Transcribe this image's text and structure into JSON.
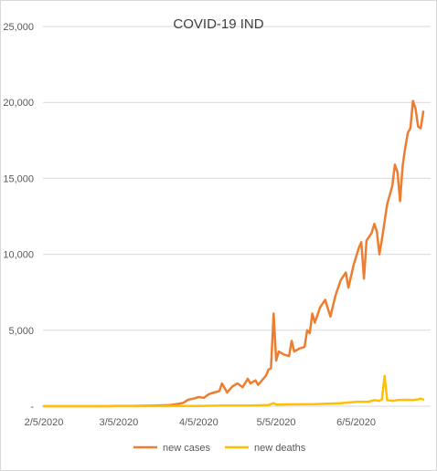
{
  "chart_data": {
    "type": "line",
    "title": "COVID-19 IND",
    "xlabel": "",
    "ylabel": "",
    "x_ticks": [
      "2/5/2020",
      "3/5/2020",
      "4/5/2020",
      "5/5/2020",
      "6/5/2020"
    ],
    "x_range": [
      "2020-02-05",
      "2020-07-01"
    ],
    "y_ticks": [
      "-",
      "5,000",
      "10,000",
      "15,000",
      "20,000",
      "25,000"
    ],
    "ylim": [
      0,
      25000
    ],
    "grid": "horizontal",
    "legend_position": "bottom",
    "series": [
      {
        "name": "new cases",
        "color": "#ED7D31",
        "points": [
          [
            "2020-02-05",
            0
          ],
          [
            "2020-03-01",
            0
          ],
          [
            "2020-03-05",
            20
          ],
          [
            "2020-03-10",
            10
          ],
          [
            "2020-03-15",
            30
          ],
          [
            "2020-03-20",
            50
          ],
          [
            "2020-03-25",
            80
          ],
          [
            "2020-03-28",
            150
          ],
          [
            "2020-03-30",
            220
          ],
          [
            "2020-04-01",
            430
          ],
          [
            "2020-04-03",
            500
          ],
          [
            "2020-04-05",
            600
          ],
          [
            "2020-04-07",
            550
          ],
          [
            "2020-04-09",
            800
          ],
          [
            "2020-04-11",
            900
          ],
          [
            "2020-04-13",
            1000
          ],
          [
            "2020-04-14",
            1500
          ],
          [
            "2020-04-16",
            900
          ],
          [
            "2020-04-18",
            1300
          ],
          [
            "2020-04-20",
            1500
          ],
          [
            "2020-04-22",
            1250
          ],
          [
            "2020-04-24",
            1800
          ],
          [
            "2020-04-25",
            1500
          ],
          [
            "2020-04-27",
            1700
          ],
          [
            "2020-04-28",
            1400
          ],
          [
            "2020-04-30",
            1800
          ],
          [
            "2020-05-01",
            2000
          ],
          [
            "2020-05-02",
            2400
          ],
          [
            "2020-05-03",
            2500
          ],
          [
            "2020-05-04",
            6100
          ],
          [
            "2020-05-05",
            3000
          ],
          [
            "2020-05-06",
            3600
          ],
          [
            "2020-05-08",
            3400
          ],
          [
            "2020-05-10",
            3300
          ],
          [
            "2020-05-11",
            4300
          ],
          [
            "2020-05-12",
            3600
          ],
          [
            "2020-05-14",
            3800
          ],
          [
            "2020-05-16",
            3900
          ],
          [
            "2020-05-17",
            5000
          ],
          [
            "2020-05-18",
            4800
          ],
          [
            "2020-05-19",
            6100
          ],
          [
            "2020-05-20",
            5500
          ],
          [
            "2020-05-22",
            6500
          ],
          [
            "2020-05-24",
            7000
          ],
          [
            "2020-05-26",
            5900
          ],
          [
            "2020-05-28",
            7300
          ],
          [
            "2020-05-30",
            8300
          ],
          [
            "2020-06-01",
            8800
          ],
          [
            "2020-06-02",
            7800
          ],
          [
            "2020-06-04",
            9300
          ],
          [
            "2020-06-06",
            10400
          ],
          [
            "2020-06-07",
            10800
          ],
          [
            "2020-06-08",
            8400
          ],
          [
            "2020-06-09",
            10900
          ],
          [
            "2020-06-11",
            11400
          ],
          [
            "2020-06-12",
            12000
          ],
          [
            "2020-06-13",
            11500
          ],
          [
            "2020-06-14",
            10000
          ],
          [
            "2020-06-15",
            11000
          ],
          [
            "2020-06-17",
            13300
          ],
          [
            "2020-06-19",
            14500
          ],
          [
            "2020-06-20",
            15900
          ],
          [
            "2020-06-21",
            15400
          ],
          [
            "2020-06-22",
            13500
          ],
          [
            "2020-06-23",
            15800
          ],
          [
            "2020-06-24",
            17000
          ],
          [
            "2020-06-25",
            18000
          ],
          [
            "2020-06-26",
            18300
          ],
          [
            "2020-06-27",
            20100
          ],
          [
            "2020-06-28",
            19600
          ],
          [
            "2020-06-29",
            18400
          ],
          [
            "2020-06-30",
            18300
          ],
          [
            "2020-07-01",
            19400
          ]
        ]
      },
      {
        "name": "new deaths",
        "color": "#FFC000",
        "points": [
          [
            "2020-02-05",
            0
          ],
          [
            "2020-03-10",
            0
          ],
          [
            "2020-03-25",
            5
          ],
          [
            "2020-04-05",
            20
          ],
          [
            "2020-04-15",
            40
          ],
          [
            "2020-04-25",
            50
          ],
          [
            "2020-05-02",
            70
          ],
          [
            "2020-05-04",
            200
          ],
          [
            "2020-05-05",
            100
          ],
          [
            "2020-05-10",
            120
          ],
          [
            "2020-05-20",
            140
          ],
          [
            "2020-05-30",
            200
          ],
          [
            "2020-06-05",
            280
          ],
          [
            "2020-06-10",
            300
          ],
          [
            "2020-06-12",
            400
          ],
          [
            "2020-06-14",
            350
          ],
          [
            "2020-06-15",
            450
          ],
          [
            "2020-06-16",
            2000
          ],
          [
            "2020-06-17",
            400
          ],
          [
            "2020-06-19",
            350
          ],
          [
            "2020-06-21",
            400
          ],
          [
            "2020-06-24",
            420
          ],
          [
            "2020-06-27",
            400
          ],
          [
            "2020-06-29",
            450
          ],
          [
            "2020-06-30",
            500
          ],
          [
            "2020-07-01",
            430
          ]
        ]
      }
    ]
  }
}
